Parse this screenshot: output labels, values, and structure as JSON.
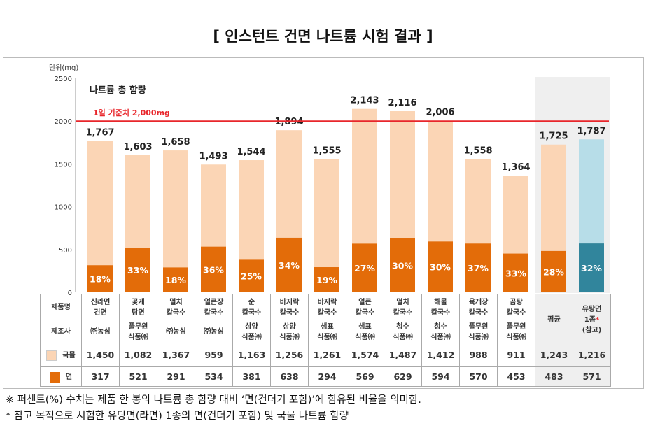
{
  "title": "[ 인스턴트 건면 나트륨 시험 결과 ]",
  "notes": [
    "※ 퍼센트(%) 수치는 제품 한 봉의 나트륨 총 함량 대비 ‘면(건더기 포함)’에 함유된 비율을 의미함.",
    "* 참고 목적으로 시험한 유탕면(라면) 1종의 면(건더기 포함) 및 국물 나트륨 함량"
  ],
  "chart_data": {
    "type": "bar",
    "stacked": true,
    "unit_label": "단위(mg)",
    "inner_title": "나트륨 총 함량",
    "reference_line": {
      "value": 2000,
      "label": "1일 기준치 2,000mg",
      "color": "#e8262b"
    },
    "ylim": [
      0,
      2500
    ],
    "yticks": [
      0,
      500,
      1000,
      1500,
      2000,
      2500
    ],
    "row_headers": {
      "product": "제품명",
      "maker": "제조사",
      "soup": "국물",
      "noodle": "면"
    },
    "products": [
      "신라면\n건면",
      "꽃게\n탕면",
      "멸치\n칼국수",
      "얼큰장\n칼국수",
      "순\n칼국수",
      "바지락\n칼국수",
      "바지락\n칼국수",
      "얼큰\n칼국수",
      "멸치\n칼국수",
      "해물\n칼국수",
      "육개장\n칼국수",
      "곰탕\n칼국수",
      "평균",
      "유탕면\n1종*\n(참고)"
    ],
    "makers": [
      "㈜농심",
      "풀무원\n식품㈜",
      "㈜농심",
      "㈜농심",
      "삼양\n식품㈜",
      "삼양\n식품㈜",
      "샘표\n식품㈜",
      "샘표\n식품㈜",
      "청수\n식품㈜",
      "청수\n식품㈜",
      "풀무원\n식품㈜",
      "풀무원\n식품㈜",
      "",
      ""
    ],
    "series": [
      {
        "name": "국물",
        "values": [
          1450,
          1082,
          1367,
          959,
          1163,
          1256,
          1261,
          1574,
          1487,
          1412,
          988,
          911,
          1243,
          1216
        ],
        "color": "#fbd5b5",
        "ref_color": "#b7dde8"
      },
      {
        "name": "면",
        "values": [
          317,
          521,
          291,
          534,
          381,
          638,
          294,
          569,
          629,
          594,
          570,
          453,
          483,
          571
        ],
        "color": "#e36c09",
        "ref_color": "#31859c"
      }
    ],
    "totals": [
      "1,767",
      "1,603",
      "1,658",
      "1,493",
      "1,544",
      "1,894",
      "1,555",
      "2,143",
      "2,116",
      "2,006",
      "1,558",
      "1,364",
      "1,725",
      "1,787"
    ],
    "soup_labels": [
      "1,450",
      "1,082",
      "1,367",
      "959",
      "1,163",
      "1,256",
      "1,261",
      "1,574",
      "1,487",
      "1,412",
      "988",
      "911",
      "1,243",
      "1,216"
    ],
    "noodle_labels": [
      "317",
      "521",
      "291",
      "534",
      "381",
      "638",
      "294",
      "569",
      "629",
      "594",
      "570",
      "453",
      "483",
      "571"
    ],
    "percent_labels": [
      "18%",
      "33%",
      "18%",
      "36%",
      "25%",
      "34%",
      "19%",
      "27%",
      "30%",
      "30%",
      "37%",
      "33%",
      "28%",
      "32%"
    ]
  }
}
